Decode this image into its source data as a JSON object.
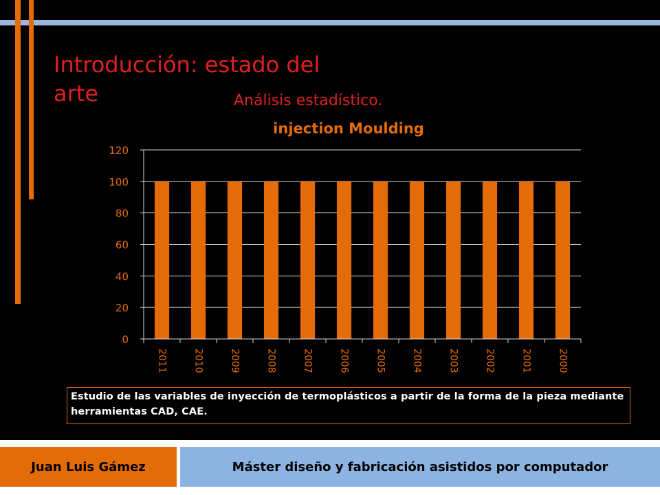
{
  "slide": {
    "title_line1": "Introducción: estado del",
    "title_line2": "arte",
    "subtitle": "Análisis estadístico.",
    "caption": "Estudio de las variables de inyección de termoplásticos a partir de la forma de la pieza mediante herramientas CAD, CAE."
  },
  "footer": {
    "author": "Juan Luis Gámez",
    "program": "Máster diseño y fabricación asistidos por computador"
  },
  "colors": {
    "accent": "#e36c09",
    "title": "#e02020",
    "footer_blue": "#8db3e2",
    "stripe_blue": "#9bb7de"
  },
  "chart_data": {
    "type": "bar",
    "title": "injection Moulding",
    "categories": [
      "2011",
      "2010",
      "2009",
      "2008",
      "2007",
      "2006",
      "2005",
      "2004",
      "2003",
      "2002",
      "2001",
      "2000"
    ],
    "values": [
      100,
      100,
      100,
      100,
      100,
      100,
      100,
      100,
      100,
      100,
      100,
      100
    ],
    "ylim": [
      0,
      120
    ],
    "yticks": [
      0,
      20,
      40,
      60,
      80,
      100,
      120
    ],
    "grid": true,
    "legend": "none",
    "bar_color": "#e36c09"
  }
}
